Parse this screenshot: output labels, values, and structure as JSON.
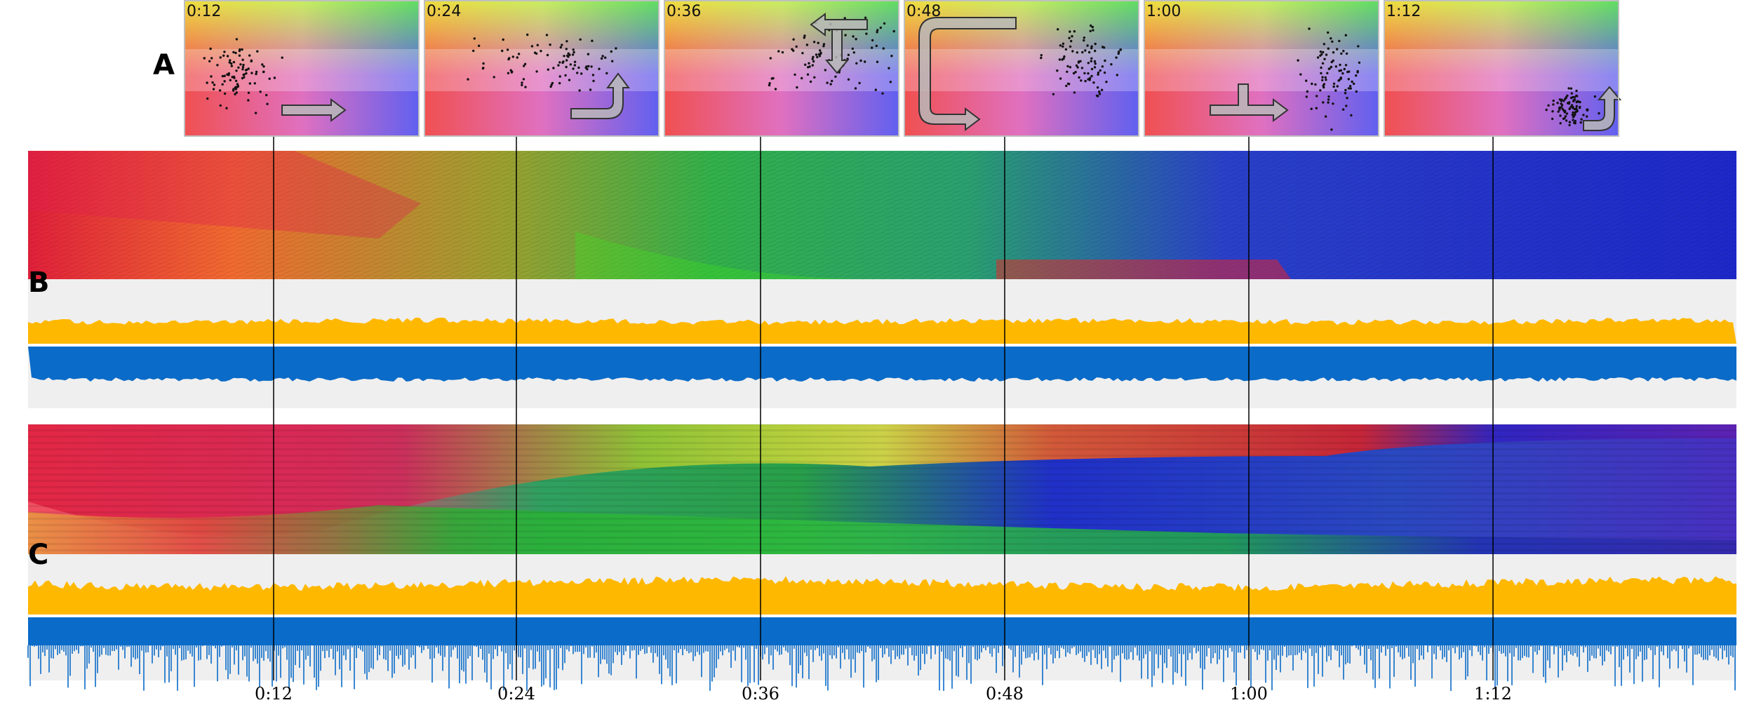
{
  "figure": {
    "panel_letters": [
      "A",
      "B",
      "C"
    ],
    "snapshots": [
      {
        "time": "0:12",
        "motion": "arrow-right-icon"
      },
      {
        "time": "0:24",
        "motion": "arrow-right-then-up-icon"
      },
      {
        "time": "0:36",
        "motion": "arrow-left-and-down-icon"
      },
      {
        "time": "0:48",
        "motion": "arrow-loop-down-right-icon"
      },
      {
        "time": "1:00",
        "motion": "arrow-right-icon"
      },
      {
        "time": "1:12",
        "motion": "arrow-right-then-up-icon"
      }
    ],
    "time_ticks": [
      "0:12",
      "0:24",
      "0:36",
      "0:48",
      "1:00",
      "1:12"
    ],
    "colors": {
      "orange_band": "#FFB800",
      "blue_band": "#0A6BC8",
      "panel_bg": "#EFEFEF",
      "snapshot_border": "#BFBFBF",
      "arrow_fill": "#B8B8B8"
    }
  }
}
